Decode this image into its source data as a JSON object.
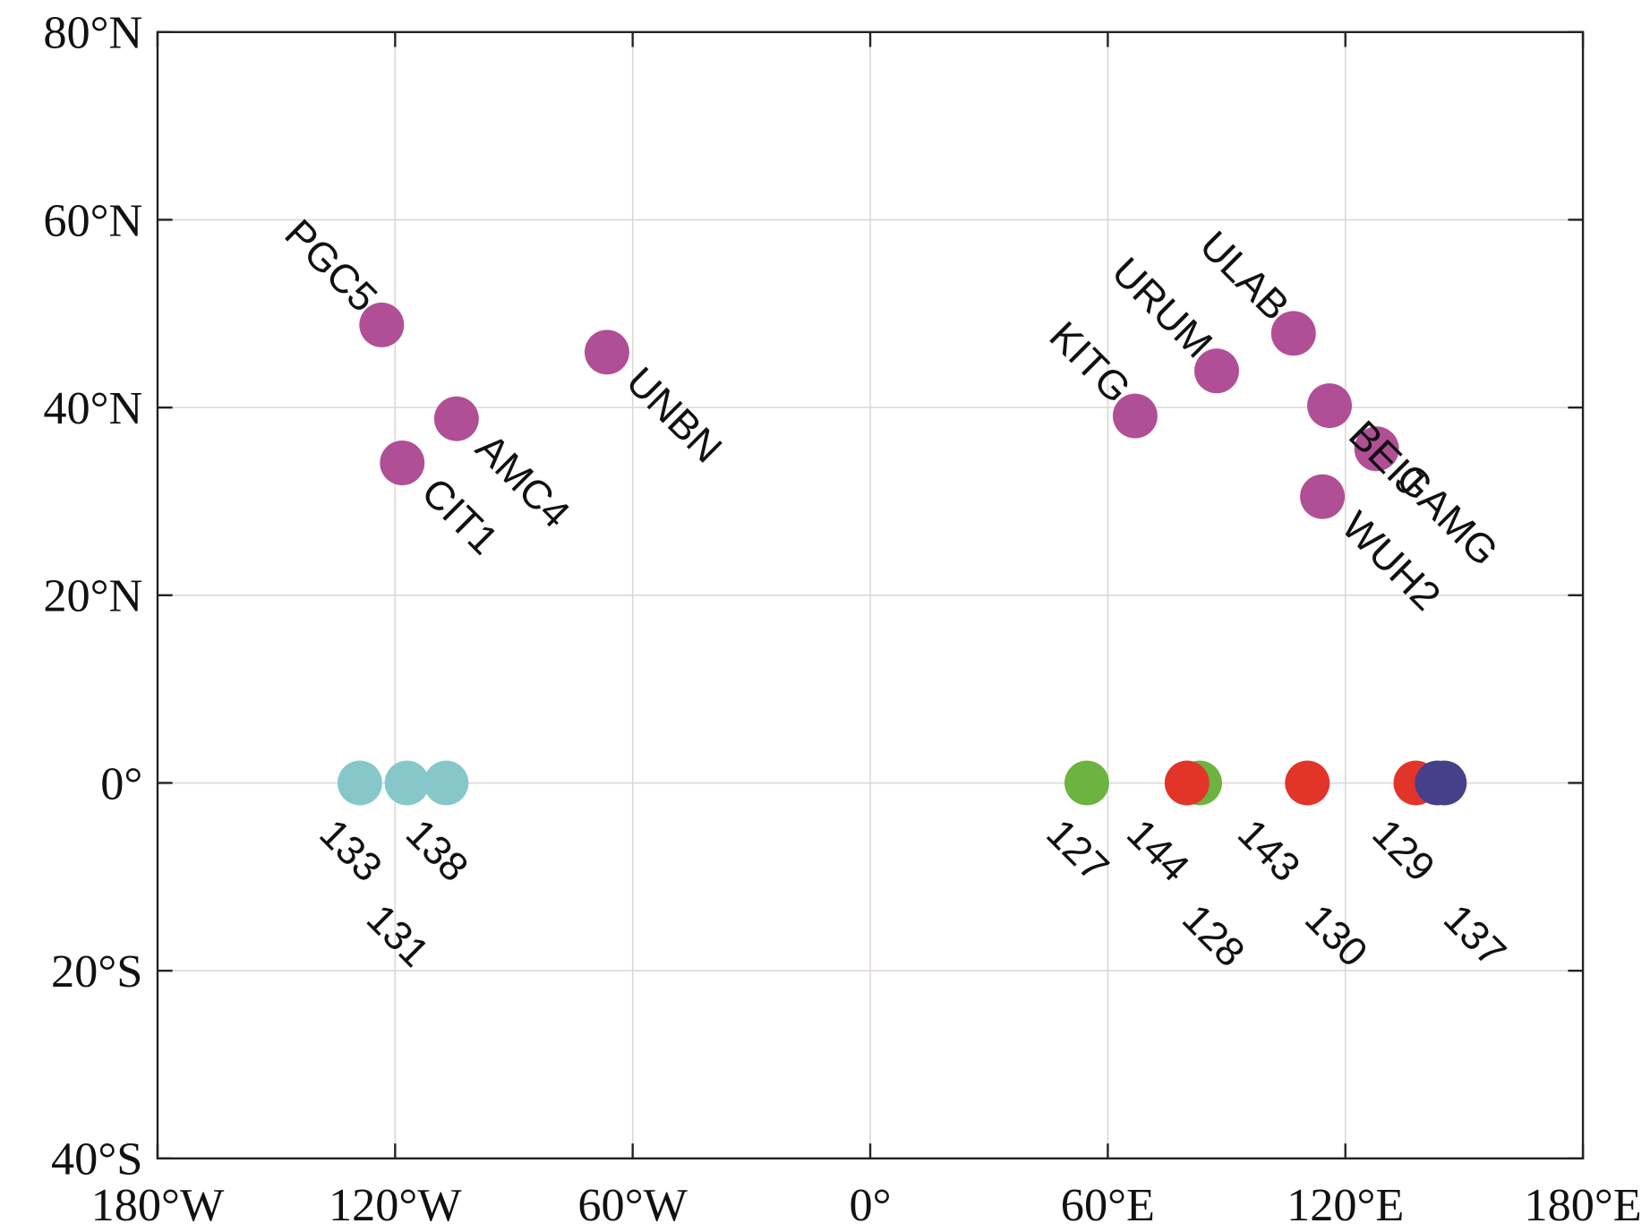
{
  "chart_data": {
    "type": "scatter",
    "title": "",
    "xlabel": "",
    "ylabel": "",
    "xlim": [
      -180,
      180
    ],
    "ylim": [
      -40,
      80
    ],
    "grid": true,
    "xticks": [
      -180,
      -120,
      -60,
      0,
      60,
      120,
      180
    ],
    "xtick_labels": [
      "180°W",
      "120°W",
      "60°W",
      "0°",
      "60°E",
      "120°E",
      "180°E"
    ],
    "yticks": [
      80,
      60,
      40,
      20,
      0,
      -20,
      -40
    ],
    "ytick_labels": [
      "80°N",
      "60°N",
      "40°N",
      "20°N",
      "0°",
      "20°S",
      "40°S"
    ],
    "stations": [
      {
        "label": "PGC5",
        "lon": -123.4,
        "lat": 48.8,
        "color": "#b04f96",
        "label_side": "upper-left"
      },
      {
        "label": "AMC4",
        "lon": -104.5,
        "lat": 38.8,
        "color": "#b04f96",
        "label_side": "lower-right"
      },
      {
        "label": "CIT1",
        "lon": -118.2,
        "lat": 34.1,
        "color": "#b04f96",
        "label_side": "lower-right"
      },
      {
        "label": "UNBN",
        "lon": -66.5,
        "lat": 45.9,
        "color": "#b04f96",
        "label_side": "lower-right"
      },
      {
        "label": "KITG",
        "lon": 66.9,
        "lat": 39.1,
        "color": "#b04f96",
        "label_side": "upper-left"
      },
      {
        "label": "URUM",
        "lon": 87.5,
        "lat": 43.9,
        "color": "#b04f96",
        "label_side": "upper-left"
      },
      {
        "label": "ULAB",
        "lon": 106.9,
        "lat": 47.9,
        "color": "#b04f96",
        "label_side": "upper-left"
      },
      {
        "label": "BEIJ",
        "lon": 116.0,
        "lat": 40.2,
        "color": "#b04f96",
        "label_side": "lower-right"
      },
      {
        "label": "GAMG",
        "lon": 127.9,
        "lat": 35.6,
        "color": "#b04f96",
        "label_side": "lower-right"
      },
      {
        "label": "WUH2",
        "lon": 114.2,
        "lat": 30.5,
        "color": "#b04f96",
        "label_side": "lower-right"
      }
    ],
    "satellites": [
      {
        "label": "133",
        "lon": -128.9,
        "lat": 0,
        "color": "#86c8c9"
      },
      {
        "label": "131",
        "lon": -117.0,
        "lat": 0,
        "color": "#86c8c9"
      },
      {
        "label": "138",
        "lon": -107.1,
        "lat": 0,
        "color": "#86c8c9"
      },
      {
        "label": "127",
        "lon": 54.7,
        "lat": 0,
        "color": "#6db33f"
      },
      {
        "label": "128",
        "lon": 83.2,
        "lat": 0,
        "color": "#6db33f"
      },
      {
        "label": "144",
        "lon": 80.0,
        "lat": 0,
        "color": "#e3342a"
      },
      {
        "label": "143",
        "lon": 110.4,
        "lat": 0,
        "color": "#e3342a"
      },
      {
        "label": "130",
        "lon": 137.8,
        "lat": 0,
        "color": "#e3342a"
      },
      {
        "label": "129",
        "lon": 143.2,
        "lat": 0,
        "color": "#463f8a"
      },
      {
        "label": "137",
        "lon": 145.0,
        "lat": 0,
        "color": "#463f8a"
      }
    ]
  }
}
